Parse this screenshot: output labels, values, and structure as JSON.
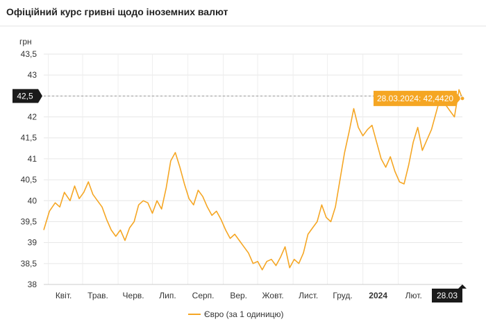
{
  "page": {
    "title": "Офіційний курс гривні щодо іноземних валют"
  },
  "chart_data": {
    "type": "line",
    "ylabel": "грн",
    "ylim": [
      38,
      43.5
    ],
    "y_ticks": [
      "38",
      "38,5",
      "39",
      "39,5",
      "40",
      "40,5",
      "41",
      "41,5",
      "42",
      "42,5",
      "43",
      "43,5"
    ],
    "y_tick_values": [
      38,
      38.5,
      39,
      39.5,
      40,
      40.5,
      41,
      41.5,
      42,
      42.5,
      43,
      43.5
    ],
    "x_range": [
      "2023-03-28",
      "2024-03-28"
    ],
    "x_ticks": [
      {
        "label": "Квіт.",
        "date": "2023-04-01",
        "bold": false
      },
      {
        "label": "Трав.",
        "date": "2023-05-01",
        "bold": false
      },
      {
        "label": "Черв.",
        "date": "2023-06-01",
        "bold": false
      },
      {
        "label": "Лип.",
        "date": "2023-07-01",
        "bold": false
      },
      {
        "label": "Серп.",
        "date": "2023-08-01",
        "bold": false
      },
      {
        "label": "Вер.",
        "date": "2023-09-01",
        "bold": false
      },
      {
        "label": "Жовт.",
        "date": "2023-10-01",
        "bold": false
      },
      {
        "label": "Лист.",
        "date": "2023-11-01",
        "bold": false
      },
      {
        "label": "Груд.",
        "date": "2023-12-01",
        "bold": false
      },
      {
        "label": "2024",
        "date": "2024-01-01",
        "bold": true
      },
      {
        "label": "Лют.",
        "date": "2024-02-01",
        "bold": false
      }
    ],
    "crosshair_y_label": "42,5",
    "crosshair_y_value": 42.5,
    "crosshair_x_label": "28.03",
    "tooltip": "28.03.2024: 42,4420",
    "grid": true,
    "legend_position": "bottom-center",
    "series": [
      {
        "name": "Євро (за 1 одиницю)",
        "color": "#f5a623",
        "points": [
          [
            "2023-03-28",
            39.3
          ],
          [
            "2023-04-02",
            39.75
          ],
          [
            "2023-04-07",
            39.95
          ],
          [
            "2023-04-11",
            39.85
          ],
          [
            "2023-04-15",
            40.2
          ],
          [
            "2023-04-20",
            40.0
          ],
          [
            "2023-04-24",
            40.35
          ],
          [
            "2023-04-28",
            40.05
          ],
          [
            "2023-05-02",
            40.2
          ],
          [
            "2023-05-06",
            40.45
          ],
          [
            "2023-05-10",
            40.15
          ],
          [
            "2023-05-14",
            40.0
          ],
          [
            "2023-05-18",
            39.85
          ],
          [
            "2023-05-22",
            39.55
          ],
          [
            "2023-05-26",
            39.3
          ],
          [
            "2023-05-30",
            39.15
          ],
          [
            "2023-06-03",
            39.3
          ],
          [
            "2023-06-07",
            39.05
          ],
          [
            "2023-06-11",
            39.35
          ],
          [
            "2023-06-15",
            39.5
          ],
          [
            "2023-06-19",
            39.9
          ],
          [
            "2023-06-23",
            40.0
          ],
          [
            "2023-06-27",
            39.95
          ],
          [
            "2023-07-01",
            39.7
          ],
          [
            "2023-07-05",
            40.0
          ],
          [
            "2023-07-09",
            39.8
          ],
          [
            "2023-07-13",
            40.3
          ],
          [
            "2023-07-17",
            40.95
          ],
          [
            "2023-07-21",
            41.15
          ],
          [
            "2023-07-25",
            40.8
          ],
          [
            "2023-07-29",
            40.4
          ],
          [
            "2023-08-02",
            40.05
          ],
          [
            "2023-08-06",
            39.9
          ],
          [
            "2023-08-10",
            40.25
          ],
          [
            "2023-08-14",
            40.1
          ],
          [
            "2023-08-18",
            39.85
          ],
          [
            "2023-08-22",
            39.65
          ],
          [
            "2023-08-26",
            39.75
          ],
          [
            "2023-08-30",
            39.55
          ],
          [
            "2023-09-03",
            39.3
          ],
          [
            "2023-09-07",
            39.1
          ],
          [
            "2023-09-11",
            39.2
          ],
          [
            "2023-09-15",
            39.05
          ],
          [
            "2023-09-19",
            38.9
          ],
          [
            "2023-09-23",
            38.75
          ],
          [
            "2023-09-27",
            38.5
          ],
          [
            "2023-10-01",
            38.55
          ],
          [
            "2023-10-05",
            38.35
          ],
          [
            "2023-10-09",
            38.55
          ],
          [
            "2023-10-13",
            38.6
          ],
          [
            "2023-10-17",
            38.45
          ],
          [
            "2023-10-21",
            38.65
          ],
          [
            "2023-10-25",
            38.9
          ],
          [
            "2023-10-29",
            38.4
          ],
          [
            "2023-11-02",
            38.6
          ],
          [
            "2023-11-06",
            38.5
          ],
          [
            "2023-11-10",
            38.75
          ],
          [
            "2023-11-14",
            39.2
          ],
          [
            "2023-11-18",
            39.35
          ],
          [
            "2023-11-22",
            39.5
          ],
          [
            "2023-11-26",
            39.9
          ],
          [
            "2023-11-30",
            39.6
          ],
          [
            "2023-12-04",
            39.5
          ],
          [
            "2023-12-08",
            39.85
          ],
          [
            "2023-12-12",
            40.5
          ],
          [
            "2023-12-16",
            41.15
          ],
          [
            "2023-12-20",
            41.65
          ],
          [
            "2023-12-24",
            42.2
          ],
          [
            "2023-12-28",
            41.75
          ],
          [
            "2024-01-01",
            41.55
          ],
          [
            "2024-01-05",
            41.7
          ],
          [
            "2024-01-09",
            41.8
          ],
          [
            "2024-01-13",
            41.4
          ],
          [
            "2024-01-17",
            41.0
          ],
          [
            "2024-01-21",
            40.8
          ],
          [
            "2024-01-25",
            41.05
          ],
          [
            "2024-01-29",
            40.7
          ],
          [
            "2024-02-02",
            40.45
          ],
          [
            "2024-02-06",
            40.4
          ],
          [
            "2024-02-10",
            40.85
          ],
          [
            "2024-02-14",
            41.4
          ],
          [
            "2024-02-18",
            41.75
          ],
          [
            "2024-02-22",
            41.2
          ],
          [
            "2024-02-26",
            41.45
          ],
          [
            "2024-03-01",
            41.7
          ],
          [
            "2024-03-05",
            42.1
          ],
          [
            "2024-03-09",
            42.5
          ],
          [
            "2024-03-13",
            42.3
          ],
          [
            "2024-03-17",
            42.15
          ],
          [
            "2024-03-21",
            42.0
          ],
          [
            "2024-03-25",
            42.65
          ],
          [
            "2024-03-28",
            42.442
          ]
        ]
      }
    ]
  }
}
